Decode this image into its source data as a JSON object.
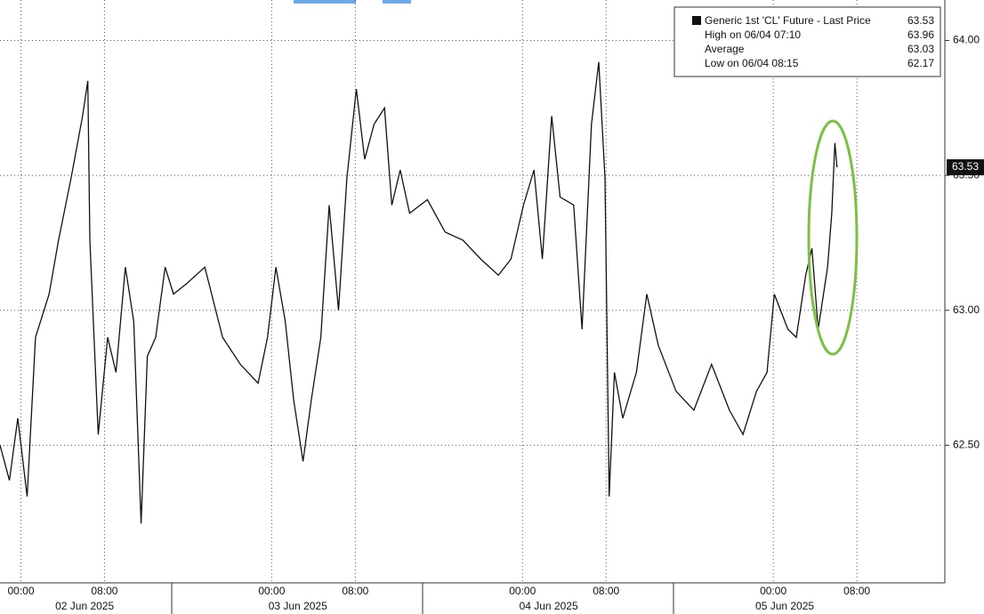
{
  "chart_data": {
    "type": "line",
    "series": [
      {
        "name": "Generic 1st 'CL' Future - Last Price",
        "color": "#111111",
        "x": [
          -2,
          -1.1,
          -0.3,
          0.6,
          1.4,
          2.7,
          3.6,
          4.8,
          5.9,
          6.4,
          6.6,
          7.4,
          8.3,
          9.1,
          10.0,
          10.8,
          11.5,
          12.1,
          12.9,
          13.8,
          14.6,
          15.9,
          17.6,
          19.3,
          21.0,
          22.7,
          23.6,
          24.4,
          25.3,
          26.1,
          27.0,
          27.8,
          28.7,
          29.5,
          30.4,
          31.2,
          32.1,
          32.9,
          33.8,
          34.8,
          35.5,
          36.3,
          37.2,
          38.9,
          40.6,
          42.3,
          44.0,
          45.7,
          46.9,
          48.1,
          49.1,
          49.9,
          50.8,
          51.6,
          52.9,
          53.7,
          54.6,
          55.3,
          55.9,
          56.3,
          56.8,
          57.6,
          58.9,
          59.9,
          61.0,
          62.7,
          64.4,
          66.1,
          67.8,
          69.1,
          70.4,
          71.4,
          72.1,
          73.4,
          74.2,
          75.1,
          75.7,
          76.3,
          77.2,
          77.6,
          77.9,
          78.1
        ],
        "values": [
          62.5,
          62.37,
          62.6,
          62.31,
          62.9,
          63.06,
          63.26,
          63.49,
          63.72,
          63.85,
          63.26,
          62.54,
          62.9,
          62.77,
          63.16,
          62.96,
          62.21,
          62.83,
          62.9,
          63.16,
          63.06,
          63.1,
          63.16,
          62.9,
          62.8,
          62.73,
          62.9,
          63.16,
          62.96,
          62.67,
          62.44,
          62.67,
          62.9,
          63.39,
          63.0,
          63.49,
          63.82,
          63.56,
          63.69,
          63.75,
          63.39,
          63.52,
          63.36,
          63.41,
          63.29,
          63.26,
          63.19,
          63.13,
          63.19,
          63.39,
          63.52,
          63.19,
          63.72,
          63.42,
          63.39,
          62.93,
          63.69,
          63.92,
          63.49,
          62.31,
          62.77,
          62.6,
          62.77,
          63.06,
          62.87,
          62.7,
          62.63,
          62.8,
          62.63,
          62.54,
          62.7,
          62.77,
          63.06,
          62.93,
          62.9,
          63.13,
          63.23,
          62.93,
          63.16,
          63.36,
          63.62,
          63.53
        ]
      }
    ],
    "xlim": [
      -2,
      88.25
    ],
    "ylim": [
      61.99,
      64.15
    ],
    "yticks": [
      {
        "value": 62.5,
        "label": "62.50"
      },
      {
        "value": 63,
        "label": "63.00"
      },
      {
        "value": 63.5,
        "label": "63.50"
      },
      {
        "value": 64,
        "label": "64.00"
      }
    ],
    "xticks": [
      {
        "value": 0,
        "label": "00:00"
      },
      {
        "value": 8,
        "label": "08:00"
      },
      {
        "value": 24,
        "label": "00:00"
      },
      {
        "value": 32,
        "label": "08:00"
      },
      {
        "value": 48,
        "label": "00:00"
      },
      {
        "value": 56,
        "label": "08:00"
      },
      {
        "value": 72,
        "label": "00:00"
      },
      {
        "value": 80,
        "label": "08:00"
      }
    ],
    "date_ticks": [
      {
        "value": 6.1,
        "label": "02 Jun 2025"
      },
      {
        "value": 26.5,
        "label": "03 Jun 2025"
      },
      {
        "value": 50.5,
        "label": "04 Jun 2025"
      },
      {
        "value": 73.1,
        "label": "05 Jun 2025"
      }
    ],
    "grid": true,
    "last_price": 63.53,
    "stats": [
      {
        "label": "High on 06/04 07:10",
        "value": 63.96
      },
      {
        "label": "Average",
        "value": 63.03
      },
      {
        "label": "Low on 06/04 08:15",
        "value": 62.17
      }
    ]
  }
}
